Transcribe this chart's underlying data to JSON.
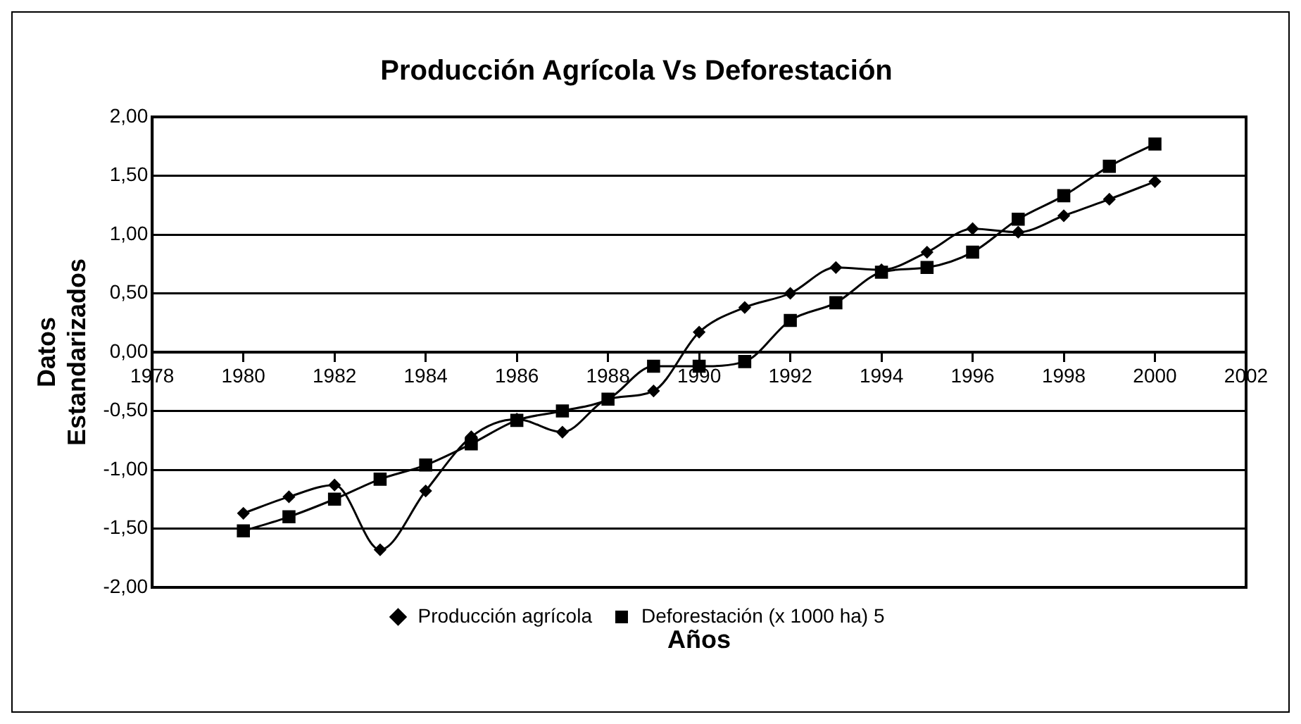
{
  "chart_data": {
    "type": "line",
    "title": "Producción Agrícola Vs Deforestación",
    "xlabel": "Años",
    "ylabel": "Datos\nEstandarizados",
    "x": [
      1980,
      1981,
      1982,
      1983,
      1984,
      1985,
      1986,
      1987,
      1988,
      1989,
      1990,
      1991,
      1992,
      1993,
      1994,
      1995,
      1996,
      1997,
      1998,
      1999,
      2000
    ],
    "series": [
      {
        "name": "Producción agrícola",
        "color": "#000000",
        "marker": "diamond",
        "values": [
          -1.37,
          -1.23,
          -1.13,
          -1.68,
          -1.18,
          -0.72,
          -0.57,
          -0.68,
          -0.4,
          -0.33,
          0.17,
          0.38,
          0.5,
          0.72,
          0.7,
          0.85,
          1.05,
          1.02,
          1.16,
          1.3,
          1.45
        ]
      },
      {
        "name": "Deforestación (x 1000 ha) 5",
        "color": "#000000",
        "marker": "square",
        "values": [
          -1.52,
          -1.4,
          -1.25,
          -1.08,
          -0.96,
          -0.78,
          -0.58,
          -0.5,
          -0.4,
          -0.12,
          -0.12,
          -0.08,
          0.27,
          0.42,
          0.68,
          0.72,
          0.85,
          1.13,
          1.33,
          1.58,
          1.77
        ]
      }
    ],
    "xlim": [
      1978,
      2002
    ],
    "xticks": [
      1978,
      1980,
      1982,
      1984,
      1986,
      1988,
      1990,
      1992,
      1994,
      1996,
      1998,
      2000,
      2002
    ],
    "ylim": [
      -2,
      2
    ],
    "yticks": [
      {
        "value": -2,
        "label": "-2,00"
      },
      {
        "value": -1.5,
        "label": "-1,50"
      },
      {
        "value": -1,
        "label": "-1,00"
      },
      {
        "value": -0.5,
        "label": "-0,50"
      },
      {
        "value": 0,
        "label": "0,00"
      },
      {
        "value": 0.5,
        "label": "0,50"
      },
      {
        "value": 1,
        "label": "1,00"
      },
      {
        "value": 1.5,
        "label": "1,50"
      },
      {
        "value": 2,
        "label": "2,00"
      }
    ],
    "grid": "y",
    "legend": "bottom"
  }
}
